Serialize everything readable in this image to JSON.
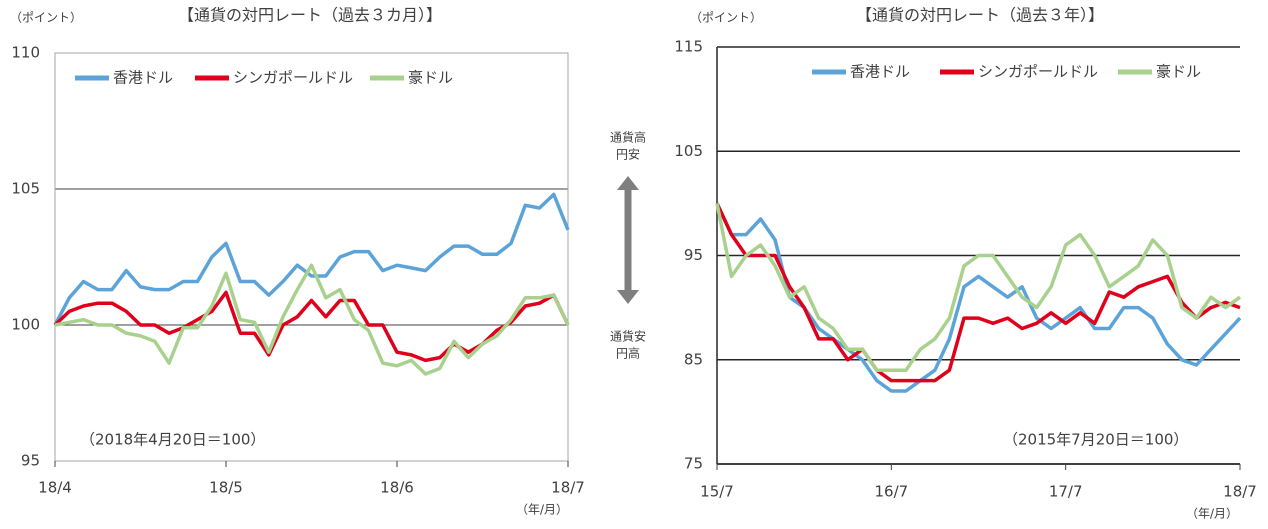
{
  "chart_data": [
    {
      "type": "line",
      "title": "【通貨の対円レート（過去３カ月）】",
      "y_label": "（ポイント）",
      "x_unit_label": "（年/月）",
      "annotation": "（2018年4月20日＝100）",
      "categories": [
        "18/4",
        null,
        null,
        null,
        null,
        null,
        null,
        null,
        null,
        null,
        null,
        null,
        "18/5",
        null,
        null,
        null,
        null,
        null,
        null,
        null,
        null,
        null,
        null,
        null,
        "18/6",
        null,
        null,
        null,
        null,
        null,
        null,
        null,
        null,
        null,
        null,
        null,
        "18/7"
      ],
      "series": [
        {
          "name": "香港ドル",
          "color": "#5ba3d8",
          "values": [
            100,
            101,
            101.6,
            101.3,
            101.3,
            102,
            101.4,
            101.3,
            101.3,
            101.6,
            101.6,
            102.5,
            103.0,
            101.6,
            101.6,
            101.1,
            101.6,
            102.2,
            101.8,
            101.8,
            102.5,
            102.7,
            102.7,
            102.0,
            102.2,
            102.1,
            102.0,
            102.5,
            102.9,
            102.9,
            102.6,
            102.6,
            103.0,
            104.4,
            104.3,
            104.8,
            103.5
          ]
        },
        {
          "name": "シンガポールドル",
          "color": "#e0001b",
          "values": [
            100,
            100.5,
            100.7,
            100.8,
            100.8,
            100.5,
            100.0,
            100.0,
            99.7,
            99.9,
            100.2,
            100.5,
            101.2,
            99.7,
            99.7,
            98.9,
            100.0,
            100.3,
            100.9,
            100.3,
            100.9,
            100.9,
            100.0,
            100.0,
            99.0,
            98.9,
            98.7,
            98.8,
            99.3,
            99.0,
            99.3,
            99.8,
            100.1,
            100.7,
            100.8,
            101.1,
            100.0
          ]
        },
        {
          "name": "豪ドル",
          "color": "#a9d18e",
          "values": [
            100,
            100.1,
            100.2,
            100.0,
            100.0,
            99.7,
            99.6,
            99.4,
            98.6,
            99.9,
            99.9,
            100.7,
            101.9,
            100.2,
            100.1,
            99.0,
            100.3,
            101.3,
            102.2,
            101.0,
            101.3,
            100.2,
            99.8,
            98.6,
            98.5,
            98.7,
            98.2,
            98.4,
            99.4,
            98.8,
            99.3,
            99.6,
            100.2,
            101.0,
            101.0,
            101.1,
            100.0
          ]
        }
      ],
      "ylim": [
        95,
        110
      ],
      "yticks": [
        95,
        100,
        105,
        110
      ],
      "grid": true,
      "legend": "top-left"
    },
    {
      "type": "line",
      "title": "【通貨の対円レート（過去３年）】",
      "y_label": "（ポイント）",
      "x_unit_label": "（年/月）",
      "annotation": "（2015年7月20日＝100）",
      "categories": [
        "15/7",
        null,
        null,
        null,
        null,
        null,
        null,
        null,
        null,
        null,
        null,
        null,
        "16/7",
        null,
        null,
        null,
        null,
        null,
        null,
        null,
        null,
        null,
        null,
        null,
        "17/7",
        null,
        null,
        null,
        null,
        null,
        null,
        null,
        null,
        null,
        null,
        null,
        "18/7"
      ],
      "series": [
        {
          "name": "香港ドル",
          "color": "#5ba3d8",
          "values": [
            100,
            97,
            97,
            98.5,
            96.5,
            91,
            90,
            88,
            87,
            86,
            85,
            83,
            82,
            82,
            83,
            84,
            87,
            92,
            93,
            92,
            91,
            92,
            89,
            88,
            89,
            90,
            88,
            88,
            90,
            90,
            89,
            86.5,
            85,
            84.5,
            86,
            87.5,
            89
          ]
        },
        {
          "name": "シンガポールドル",
          "color": "#e0001b",
          "values": [
            100,
            97,
            95,
            95,
            95,
            92,
            90,
            87,
            87,
            85,
            86,
            84,
            83,
            83,
            83,
            83,
            84,
            89,
            89,
            88.5,
            89,
            88,
            88.5,
            89.5,
            88.5,
            89.5,
            88.5,
            91.5,
            91,
            92,
            92.5,
            93,
            90.5,
            89,
            90,
            90.5,
            90
          ]
        },
        {
          "name": "豪ドル",
          "color": "#a9d18e",
          "values": [
            100,
            93,
            95,
            96,
            94,
            91,
            92,
            89,
            88,
            86,
            86,
            84,
            84,
            84,
            86,
            87,
            89,
            94,
            95,
            95,
            93,
            91,
            90,
            92,
            96,
            97,
            95,
            92,
            93,
            94,
            96.5,
            95,
            90,
            89,
            91,
            90,
            91
          ]
        }
      ],
      "ylim": [
        75,
        115
      ],
      "yticks": [
        75,
        85,
        95,
        105,
        115
      ],
      "grid": true,
      "legend": "top-left"
    }
  ],
  "arrow_labels": {
    "top": [
      "通貨高",
      "円安"
    ],
    "bottom": [
      "通貨安",
      "円高"
    ]
  }
}
